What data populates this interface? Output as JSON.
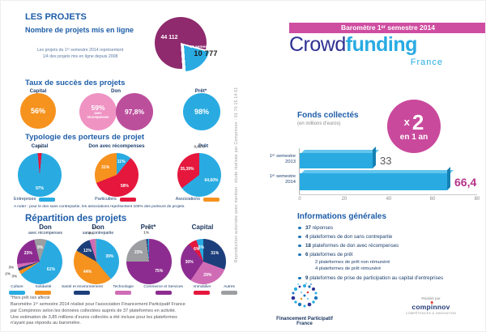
{
  "sidebar_note": "Reproduction autorisée avec mention : étude réalisée par Compinnov - 01 70 15 14 61",
  "colors": {
    "heading_blue": "#1d5da8",
    "navy": "#1c3f6e",
    "cyan": "#29abe2",
    "orange": "#f6921e",
    "red": "#e5173d",
    "dark_magenta": "#8e2a6d",
    "purple": "#8d2c90",
    "pink": "#cf6cb5",
    "gray": "#9c9ea1",
    "banner_pink": "#cf4da1",
    "badge_pink": "#c9499c"
  },
  "left": {
    "projects": {
      "title": "LES PROJETS",
      "subtitle": "Nombre de projets mis en ligne",
      "caption": "Les projets du 1ᵉʳ semestre 2014 représentent\n1/4 des projets mis en ligne depuis 2008",
      "pie_label_total": "44 112",
      "pie_label_slice_title": "1ᵉʳ semestre 2014",
      "pie_label_slice_value": "10 777"
    },
    "success": {
      "title": "Taux de succès des projets",
      "groups": [
        {
          "label": "Capital"
        },
        {
          "label": "Don"
        },
        {
          "label": "Prêt*"
        }
      ],
      "circles": [
        {
          "value": "56%",
          "color": "#f6921e"
        },
        {
          "value": "59%",
          "sub": "avec récompenses",
          "color": "#ef93c3"
        },
        {
          "value": "97,8%",
          "color": "#bc4f9c"
        },
        {
          "value": "98%",
          "color": "#29abe2"
        }
      ]
    },
    "typologie": {
      "title": "Typologie des porteurs de projet",
      "legend": [
        {
          "label": "Entreprises",
          "color": "#29abe2"
        },
        {
          "label": "Particuliers",
          "color": "#e5173d"
        },
        {
          "label": "Associations",
          "color": "#f6921e"
        }
      ],
      "note": "A noter : pour le don sans contrepartie, les associations représentent 100% des porteurs de projets."
    },
    "repartition": {
      "title": "Répartition des projets",
      "legend": [
        {
          "label": "Culture",
          "color": "#29abe2"
        },
        {
          "label": "Solidarité",
          "color": "#f6921e"
        },
        {
          "label": "Santé et environnement",
          "color": "#1c3f7b"
        },
        {
          "label": "Technologie",
          "color": "#cf6cb5"
        },
        {
          "label": "Commerce et Services",
          "color": "#8d2c90"
        },
        {
          "label": "Immobilier",
          "color": "#e5173d"
        },
        {
          "label": "Autres",
          "color": "#9c9ea1"
        }
      ],
      "footnote": "*Hors prêt non affecté",
      "footer": "Baromètre 1ᵉʳ semestre 2014 réalisé pour l'association Financement Participatif France\npar Compinnov selon les données collectées auprès de 37 plateformes en activité.\nUne estimation de 3,85 millions d'euros collectés a été incluse pour les plateformes\nn'ayant pas répondu au baromètre."
    }
  },
  "right": {
    "header": {
      "banner": "Baromètre 1ᵉʳ semestre 2014",
      "banner_color": "#cf4da1",
      "title_part1": "Crowd",
      "title_part2": "funding",
      "subtitle": "France"
    },
    "funds": {
      "title": "Fonds collectés",
      "subtitle": "(en millions d'euros)",
      "badge": {
        "x": "x",
        "num": "2",
        "sub": "en 1 an",
        "color": "#c9499c"
      }
    },
    "infos": {
      "title": "Informations générales",
      "items": [
        {
          "num": "37",
          "text": "réponses"
        },
        {
          "num": "4",
          "text": "plateformes de don sans contrepartie"
        },
        {
          "num": "18",
          "text": "plateformes de don avec récompenses"
        },
        {
          "num": "6",
          "text": "plateformes de prêt",
          "subs": [
            "2 plateformes de prêt non rémunéré",
            "4 plateformes de prêt rémunéré"
          ]
        },
        {
          "num": "9",
          "text": "plateformes de prise de participation au capital d'entreprises"
        }
      ]
    },
    "credits": {
      "fpf_line1": "Financement Participatif",
      "fpf_line2": "France",
      "realise": "Réalisé par",
      "wordmark_pre": "comp",
      "wordmark_i": "i",
      "wordmark_post": "nnov",
      "tagline": "COMPÉTENCES & INNOVATION"
    }
  },
  "chart_data": [
    {
      "type": "pie",
      "title": "Nombre de projets mis en ligne",
      "slices": [
        {
          "name": "projets depuis 2008",
          "label": "44 112",
          "value": 44112,
          "color": "#8e2a6d"
        },
        {
          "name": "1ᵉʳ semestre 2014",
          "label": "10 777",
          "value": 10777,
          "color": "#29abe2"
        }
      ]
    },
    {
      "type": "pie",
      "title": "Capital",
      "slices": [
        {
          "name": "Particuliers",
          "label": "3%",
          "value": 3,
          "color": "#e5173d"
        },
        {
          "name": "Entreprises",
          "label": "97%",
          "value": 97,
          "color": "#29abe2"
        }
      ]
    },
    {
      "type": "pie",
      "title": "Don avec récompenses",
      "slices": [
        {
          "name": "Entreprises",
          "label": "11%",
          "value": 11,
          "color": "#29abe2"
        },
        {
          "name": "Particuliers",
          "label": "58%",
          "value": 58,
          "color": "#e5173d"
        },
        {
          "name": "Associations",
          "label": "31%",
          "value": 31,
          "color": "#f6921e"
        }
      ]
    },
    {
      "type": "pie",
      "title": "Prêt",
      "slices": [
        {
          "name": "Entreprises",
          "label": "64,60%",
          "value": 64.6,
          "color": "#29abe2"
        },
        {
          "name": "Particuliers",
          "label": "35,39%",
          "value": 35.39,
          "color": "#e5173d"
        },
        {
          "name": "Associations",
          "label": "0,01%",
          "value": 0.01,
          "color": "#f6921e"
        }
      ]
    },
    {
      "type": "pie",
      "title": "Don",
      "subtitle": "avec récompenses",
      "slices": [
        {
          "name": "Culture",
          "label": "61%",
          "value": 61,
          "color": "#29abe2"
        },
        {
          "name": "Solidarité",
          "label": "3%",
          "value": 3,
          "color": "#f6921e"
        },
        {
          "name": "Santé et environnement",
          "label": "2%",
          "value": 2,
          "color": "#1c3f7b"
        },
        {
          "name": "Technologie",
          "label": "3%",
          "value": 3,
          "color": "#cf6cb5"
        },
        {
          "name": "Commerce et Services",
          "label": "23%",
          "value": 23,
          "color": "#8d2c90"
        },
        {
          "name": "Autres",
          "label": "9%",
          "value": 9,
          "color": "#9c9ea1"
        }
      ]
    },
    {
      "type": "pie",
      "title": "Don",
      "subtitle": "sans contrepartie",
      "slices": [
        {
          "name": "Culture",
          "label": "39%",
          "value": 39,
          "color": "#29abe2"
        },
        {
          "name": "Solidarité",
          "label": "44%",
          "value": 44,
          "color": "#f6921e"
        },
        {
          "name": "Santé et environnement",
          "label": "12%",
          "value": 12,
          "color": "#1c3f7b"
        },
        {
          "name": "Technologie",
          "label": "4%",
          "value": 4,
          "color": "#cf6cb5"
        },
        {
          "name": "Autres",
          "label": "1%",
          "value": 1,
          "color": "#9c9ea1"
        }
      ]
    },
    {
      "type": "pie",
      "title": "Prêt*",
      "subtitle": "",
      "slices": [
        {
          "name": "Commerce et Services",
          "label": "75%",
          "value": 75,
          "color": "#8d2c90"
        },
        {
          "name": "Autres",
          "label": "23%",
          "value": 23,
          "color": "#9c9ea1"
        },
        {
          "name": "Santé et environnement",
          "label": "1%",
          "value": 1,
          "color": "#1c3f7b"
        },
        {
          "name": "Culture",
          "label": "1%",
          "value": 1,
          "color": "#29abe2"
        }
      ]
    },
    {
      "type": "pie",
      "title": "Capital",
      "subtitle": "",
      "slices": [
        {
          "name": "Santé et environnement",
          "label": "31%",
          "value": 31,
          "color": "#1c3f7b"
        },
        {
          "name": "Technologie",
          "label": "29%",
          "value": 29,
          "color": "#cf6cb5"
        },
        {
          "name": "Commerce et Services",
          "label": "30%",
          "value": 30,
          "color": "#8d2c90"
        },
        {
          "name": "Immobilier",
          "label": "6%",
          "value": 6,
          "color": "#e5173d"
        },
        {
          "name": "Culture",
          "label": "5%",
          "value": 5,
          "color": "#29abe2"
        }
      ]
    },
    {
      "type": "bar",
      "title": "Fonds collectés",
      "subtitle": "(en millions d'euros)",
      "categories": [
        "1ᵉʳ semestre 2013",
        "1ᵉʳ semestre 2014"
      ],
      "values": [
        33,
        66.4
      ],
      "value_labels": [
        "33",
        "66,4"
      ],
      "xlim": [
        0,
        80
      ],
      "ticks": [
        0,
        20,
        40,
        60,
        80
      ],
      "bar_color": "#29abe2"
    }
  ]
}
